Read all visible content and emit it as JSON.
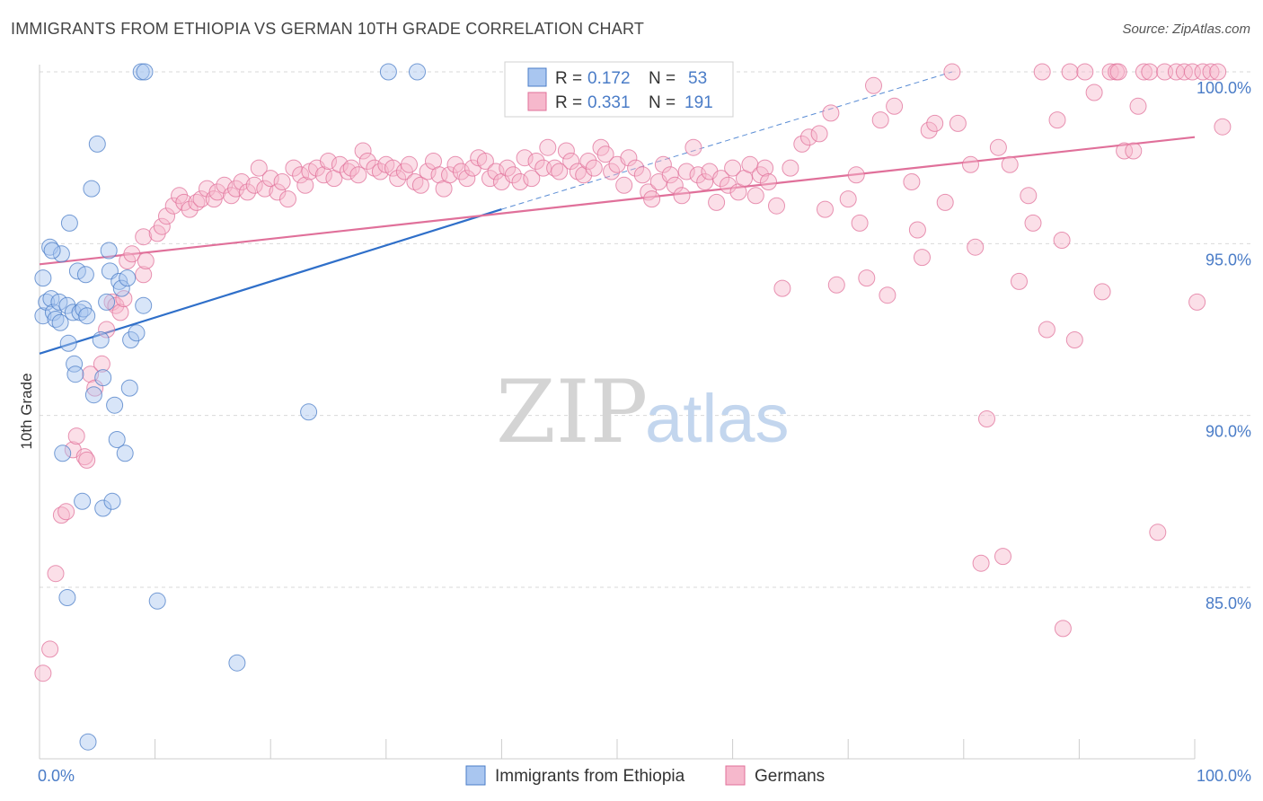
{
  "header": {
    "title": "IMMIGRANTS FROM ETHIOPIA VS GERMAN 10TH GRADE CORRELATION CHART",
    "source": "Source: ZipAtlas.com"
  },
  "watermark": {
    "zip": "ZIP",
    "atlas": "atlas"
  },
  "colors": {
    "blue": "#4a7cc7",
    "blue_fill": "#a9c6f0",
    "blue_line": "#2f6fc9",
    "pink": "#e0709a",
    "pink_fill": "#f6b8cc",
    "pink_line": "#e0709a",
    "grid": "#d9d9d9"
  },
  "chart_data": {
    "type": "scatter",
    "title": "IMMIGRANTS FROM ETHIOPIA VS GERMAN 10TH GRADE CORRELATION CHART",
    "xlabel": "",
    "ylabel": "10th Grade",
    "xlim": [
      0,
      100
    ],
    "ylim": [
      80.0,
      100.4
    ],
    "x_tick_labels": [
      "0.0%",
      "100.0%"
    ],
    "y_ticks": [
      85,
      90,
      95,
      100
    ],
    "y_tick_labels": [
      "85.0%",
      "90.0%",
      "95.0%",
      "100.0%"
    ],
    "grid": true,
    "legend_position": "top-center",
    "stats_legend": [
      {
        "r_label": "R = ",
        "r_value": "0.172",
        "n_label": "N = ",
        "n_value": "53"
      },
      {
        "r_label": "R = ",
        "r_value": "0.331",
        "n_label": "N = ",
        "n_value": "191"
      }
    ],
    "series": [
      {
        "name": "Immigrants from Ethiopia",
        "color": "#4a7cc7",
        "trend": {
          "x": [
            0,
            40
          ],
          "y": [
            91.8,
            96.0
          ],
          "dashed_extension": {
            "x": [
              40,
              79
            ],
            "y": [
              96.0,
              100.0
            ]
          }
        },
        "points": [
          [
            0.3,
            92.9
          ],
          [
            0.3,
            94.0
          ],
          [
            0.6,
            93.3
          ],
          [
            0.9,
            94.9
          ],
          [
            1.0,
            93.4
          ],
          [
            1.2,
            93.0
          ],
          [
            1.4,
            92.8
          ],
          [
            1.7,
            93.3
          ],
          [
            1.8,
            92.7
          ],
          [
            1.9,
            94.7
          ],
          [
            2.4,
            93.2
          ],
          [
            2.5,
            92.1
          ],
          [
            2.6,
            95.6
          ],
          [
            2.9,
            93.0
          ],
          [
            3.0,
            91.5
          ],
          [
            3.1,
            91.2
          ],
          [
            3.3,
            94.2
          ],
          [
            3.5,
            93.0
          ],
          [
            3.7,
            87.5
          ],
          [
            3.8,
            93.1
          ],
          [
            4.0,
            94.1
          ],
          [
            4.1,
            92.9
          ],
          [
            2.0,
            88.9
          ],
          [
            2.4,
            84.7
          ],
          [
            4.5,
            96.6
          ],
          [
            4.7,
            90.6
          ],
          [
            5.0,
            97.9
          ],
          [
            5.3,
            92.2
          ],
          [
            5.5,
            87.3
          ],
          [
            5.5,
            91.1
          ],
          [
            5.8,
            93.3
          ],
          [
            6.0,
            94.8
          ],
          [
            6.1,
            94.2
          ],
          [
            6.3,
            87.5
          ],
          [
            6.5,
            90.3
          ],
          [
            6.7,
            89.3
          ],
          [
            6.9,
            93.9
          ],
          [
            7.1,
            93.7
          ],
          [
            7.4,
            88.9
          ],
          [
            7.6,
            94.0
          ],
          [
            7.8,
            90.8
          ],
          [
            7.9,
            92.2
          ],
          [
            8.4,
            92.4
          ],
          [
            9.0,
            93.2
          ],
          [
            8.8,
            100.0
          ],
          [
            9.1,
            100.0
          ],
          [
            10.2,
            84.6
          ],
          [
            17.1,
            82.8
          ],
          [
            23.3,
            90.1
          ],
          [
            30.2,
            100.0
          ],
          [
            32.7,
            100.0
          ],
          [
            4.2,
            80.5
          ],
          [
            1.1,
            94.8
          ]
        ]
      },
      {
        "name": "Germans",
        "color": "#e0709a",
        "trend": {
          "x": [
            0,
            100
          ],
          "y": [
            94.4,
            98.1
          ]
        },
        "points": [
          [
            0.3,
            82.5
          ],
          [
            0.9,
            83.2
          ],
          [
            1.4,
            85.4
          ],
          [
            1.9,
            87.1
          ],
          [
            2.3,
            87.2
          ],
          [
            2.9,
            89.0
          ],
          [
            3.2,
            89.4
          ],
          [
            3.9,
            88.8
          ],
          [
            4.1,
            88.7
          ],
          [
            4.4,
            91.2
          ],
          [
            4.8,
            90.8
          ],
          [
            5.4,
            91.5
          ],
          [
            5.8,
            92.5
          ],
          [
            6.3,
            93.3
          ],
          [
            6.6,
            93.2
          ],
          [
            7.0,
            93.0
          ],
          [
            7.3,
            93.4
          ],
          [
            7.6,
            94.5
          ],
          [
            8.0,
            94.7
          ],
          [
            9.0,
            94.1
          ],
          [
            9.2,
            94.5
          ],
          [
            9.0,
            95.2
          ],
          [
            10.2,
            95.3
          ],
          [
            10.6,
            95.5
          ],
          [
            11.0,
            95.8
          ],
          [
            11.6,
            96.1
          ],
          [
            12.1,
            96.4
          ],
          [
            12.5,
            96.2
          ],
          [
            13.0,
            96.0
          ],
          [
            13.6,
            96.2
          ],
          [
            14.0,
            96.3
          ],
          [
            14.5,
            96.6
          ],
          [
            15.1,
            96.3
          ],
          [
            15.4,
            96.5
          ],
          [
            16.0,
            96.7
          ],
          [
            16.6,
            96.4
          ],
          [
            17.0,
            96.6
          ],
          [
            17.5,
            96.8
          ],
          [
            18.0,
            96.5
          ],
          [
            18.6,
            96.7
          ],
          [
            19.0,
            97.2
          ],
          [
            19.5,
            96.6
          ],
          [
            20.0,
            96.9
          ],
          [
            20.6,
            96.5
          ],
          [
            21.0,
            96.8
          ],
          [
            21.5,
            96.3
          ],
          [
            22.0,
            97.2
          ],
          [
            22.6,
            97.0
          ],
          [
            23.0,
            96.7
          ],
          [
            23.4,
            97.1
          ],
          [
            24.0,
            97.2
          ],
          [
            24.6,
            97.0
          ],
          [
            25.0,
            97.4
          ],
          [
            25.5,
            96.9
          ],
          [
            26.0,
            97.3
          ],
          [
            26.7,
            97.1
          ],
          [
            27.0,
            97.2
          ],
          [
            27.6,
            97.0
          ],
          [
            28.0,
            97.7
          ],
          [
            28.4,
            97.4
          ],
          [
            29.0,
            97.2
          ],
          [
            29.5,
            97.1
          ],
          [
            30.0,
            97.3
          ],
          [
            30.6,
            97.2
          ],
          [
            31.0,
            96.9
          ],
          [
            31.6,
            97.1
          ],
          [
            32.0,
            97.3
          ],
          [
            32.5,
            96.8
          ],
          [
            33.0,
            96.7
          ],
          [
            33.6,
            97.1
          ],
          [
            34.1,
            97.4
          ],
          [
            34.6,
            97.0
          ],
          [
            35.0,
            96.6
          ],
          [
            35.5,
            97.0
          ],
          [
            36.0,
            97.3
          ],
          [
            36.5,
            97.1
          ],
          [
            37.0,
            96.9
          ],
          [
            37.5,
            97.2
          ],
          [
            38.0,
            97.5
          ],
          [
            38.6,
            97.4
          ],
          [
            39.0,
            96.9
          ],
          [
            39.5,
            97.1
          ],
          [
            40.0,
            96.8
          ],
          [
            40.5,
            97.2
          ],
          [
            41.0,
            97.0
          ],
          [
            41.6,
            96.8
          ],
          [
            42.0,
            97.5
          ],
          [
            42.6,
            96.9
          ],
          [
            43.0,
            97.4
          ],
          [
            43.6,
            97.2
          ],
          [
            44.0,
            97.8
          ],
          [
            44.6,
            97.2
          ],
          [
            45.0,
            97.1
          ],
          [
            45.6,
            97.7
          ],
          [
            46.0,
            97.4
          ],
          [
            46.6,
            97.1
          ],
          [
            47.1,
            97.0
          ],
          [
            47.5,
            97.4
          ],
          [
            48.0,
            97.2
          ],
          [
            48.6,
            97.8
          ],
          [
            49.0,
            97.6
          ],
          [
            49.5,
            97.1
          ],
          [
            50.0,
            97.3
          ],
          [
            50.6,
            96.7
          ],
          [
            51.0,
            97.5
          ],
          [
            51.6,
            97.2
          ],
          [
            52.2,
            97.0
          ],
          [
            52.7,
            96.5
          ],
          [
            53.0,
            96.3
          ],
          [
            53.6,
            96.8
          ],
          [
            54.0,
            97.3
          ],
          [
            54.6,
            97.0
          ],
          [
            55.0,
            96.7
          ],
          [
            55.6,
            96.4
          ],
          [
            56.0,
            97.1
          ],
          [
            56.6,
            97.8
          ],
          [
            57.0,
            97.0
          ],
          [
            57.6,
            96.8
          ],
          [
            58.0,
            97.1
          ],
          [
            58.6,
            96.2
          ],
          [
            59.0,
            96.9
          ],
          [
            59.6,
            96.7
          ],
          [
            60.0,
            97.2
          ],
          [
            60.5,
            96.5
          ],
          [
            61.0,
            96.9
          ],
          [
            61.5,
            97.3
          ],
          [
            62.0,
            96.4
          ],
          [
            62.4,
            97.0
          ],
          [
            62.8,
            97.2
          ],
          [
            63.1,
            96.8
          ],
          [
            63.8,
            96.1
          ],
          [
            64.3,
            93.7
          ],
          [
            65.0,
            97.2
          ],
          [
            66.0,
            97.9
          ],
          [
            66.6,
            98.1
          ],
          [
            67.5,
            98.2
          ],
          [
            68.0,
            96.0
          ],
          [
            68.5,
            98.8
          ],
          [
            69.0,
            93.8
          ],
          [
            70.0,
            96.3
          ],
          [
            70.7,
            97.0
          ],
          [
            71.0,
            95.6
          ],
          [
            71.6,
            94.0
          ],
          [
            72.2,
            99.6
          ],
          [
            72.8,
            98.6
          ],
          [
            73.4,
            93.5
          ],
          [
            74.0,
            99.0
          ],
          [
            75.5,
            96.8
          ],
          [
            76.0,
            95.4
          ],
          [
            76.4,
            94.6
          ],
          [
            77.0,
            98.3
          ],
          [
            77.5,
            98.5
          ],
          [
            78.4,
            96.2
          ],
          [
            79.0,
            100.0
          ],
          [
            79.5,
            98.5
          ],
          [
            80.6,
            97.3
          ],
          [
            81.0,
            94.9
          ],
          [
            81.5,
            85.7
          ],
          [
            82.0,
            89.9
          ],
          [
            83.0,
            97.8
          ],
          [
            83.4,
            85.9
          ],
          [
            84.0,
            97.3
          ],
          [
            84.8,
            93.9
          ],
          [
            85.6,
            96.4
          ],
          [
            86.0,
            95.6
          ],
          [
            86.8,
            100.0
          ],
          [
            87.2,
            92.5
          ],
          [
            88.1,
            98.6
          ],
          [
            88.5,
            95.1
          ],
          [
            89.2,
            100.0
          ],
          [
            89.6,
            92.2
          ],
          [
            90.5,
            100.0
          ],
          [
            91.3,
            99.4
          ],
          [
            92.0,
            93.6
          ],
          [
            92.7,
            100.0
          ],
          [
            93.2,
            100.0
          ],
          [
            93.4,
            100.0
          ],
          [
            93.9,
            97.7
          ],
          [
            94.7,
            97.7
          ],
          [
            95.1,
            99.0
          ],
          [
            95.6,
            100.0
          ],
          [
            96.1,
            100.0
          ],
          [
            96.8,
            86.6
          ],
          [
            97.4,
            100.0
          ],
          [
            98.4,
            100.0
          ],
          [
            99.1,
            100.0
          ],
          [
            99.8,
            100.0
          ],
          [
            100.2,
            93.3
          ],
          [
            100.7,
            100.0
          ],
          [
            101.4,
            100.0
          ],
          [
            102.0,
            100.0
          ],
          [
            102.4,
            98.4
          ],
          [
            88.6,
            83.8
          ]
        ]
      }
    ]
  },
  "bottom_legend": [
    "Immigrants from Ethiopia",
    "Germans"
  ]
}
